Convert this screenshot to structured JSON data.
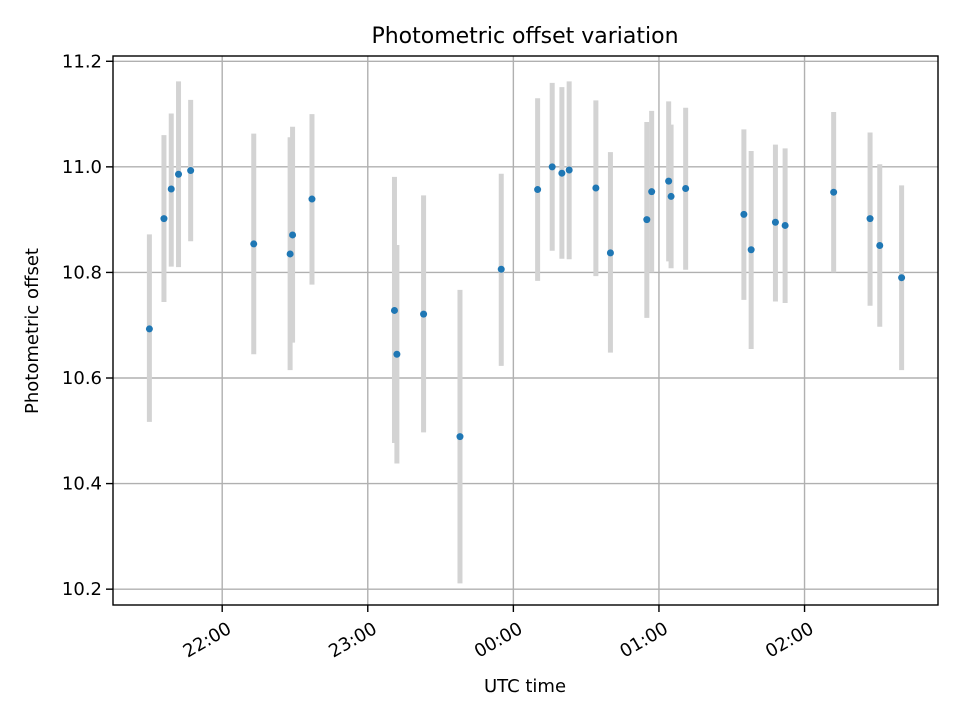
{
  "chart_data": {
    "type": "scatter",
    "title": "Photometric offset variation",
    "xlabel": "UTC time",
    "ylabel": "Photometric offset",
    "x_axis": {
      "kind": "time",
      "range": [
        "21:15",
        "02:55"
      ],
      "ticks": [
        "22:00",
        "23:00",
        "00:00",
        "01:00",
        "02:00"
      ]
    },
    "y_axis": {
      "range": [
        10.17,
        11.21
      ],
      "ticks": [
        10.2,
        10.4,
        10.6,
        10.8,
        11.0,
        11.2
      ],
      "tick_labels": [
        "10.2",
        "10.4",
        "10.6",
        "10.8",
        "11.0",
        "11.2"
      ]
    },
    "grid": true,
    "colors": {
      "points": "#1f77b4",
      "errorbars": "#d3d3d3"
    },
    "series": [
      {
        "points": [
          {
            "t": "21:30",
            "y": 10.693,
            "lo": 10.517,
            "hi": 10.872
          },
          {
            "t": "21:36",
            "y": 10.902,
            "lo": 10.744,
            "hi": 11.06
          },
          {
            "t": "21:39",
            "y": 10.958,
            "lo": 10.811,
            "hi": 11.101
          },
          {
            "t": "21:42",
            "y": 10.986,
            "lo": 10.81,
            "hi": 11.162
          },
          {
            "t": "21:47",
            "y": 10.993,
            "lo": 10.859,
            "hi": 11.127
          },
          {
            "t": "22:13",
            "y": 10.854,
            "lo": 10.645,
            "hi": 11.063
          },
          {
            "t": "22:28",
            "y": 10.835,
            "lo": 10.615,
            "hi": 11.056
          },
          {
            "t": "22:29",
            "y": 10.871,
            "lo": 10.667,
            "hi": 11.076
          },
          {
            "t": "22:37",
            "y": 10.939,
            "lo": 10.777,
            "hi": 11.1
          },
          {
            "t": "23:11",
            "y": 10.728,
            "lo": 10.477,
            "hi": 10.981
          },
          {
            "t": "23:12",
            "y": 10.645,
            "lo": 10.438,
            "hi": 10.852
          },
          {
            "t": "23:23",
            "y": 10.721,
            "lo": 10.497,
            "hi": 10.946
          },
          {
            "t": "23:38",
            "y": 10.489,
            "lo": 10.211,
            "hi": 10.767
          },
          {
            "t": "23:55",
            "y": 10.806,
            "lo": 10.623,
            "hi": 10.987
          },
          {
            "t": "00:10",
            "y": 10.957,
            "lo": 10.784,
            "hi": 11.13
          },
          {
            "t": "00:16",
            "y": 11.0,
            "lo": 10.841,
            "hi": 11.159
          },
          {
            "t": "00:20",
            "y": 10.988,
            "lo": 10.826,
            "hi": 11.151
          },
          {
            "t": "00:23",
            "y": 10.994,
            "lo": 10.825,
            "hi": 11.162
          },
          {
            "t": "00:34",
            "y": 10.96,
            "lo": 10.793,
            "hi": 11.126
          },
          {
            "t": "00:40",
            "y": 10.837,
            "lo": 10.648,
            "hi": 11.028
          },
          {
            "t": "00:55",
            "y": 10.9,
            "lo": 10.714,
            "hi": 11.085
          },
          {
            "t": "00:57",
            "y": 10.953,
            "lo": 10.8,
            "hi": 11.106
          },
          {
            "t": "01:04",
            "y": 10.973,
            "lo": 10.821,
            "hi": 11.124
          },
          {
            "t": "01:05",
            "y": 10.944,
            "lo": 10.808,
            "hi": 11.08
          },
          {
            "t": "01:11",
            "y": 10.959,
            "lo": 10.805,
            "hi": 11.112
          },
          {
            "t": "01:35",
            "y": 10.91,
            "lo": 10.748,
            "hi": 11.071
          },
          {
            "t": "01:38",
            "y": 10.843,
            "lo": 10.655,
            "hi": 11.03
          },
          {
            "t": "01:48",
            "y": 10.895,
            "lo": 10.745,
            "hi": 11.042
          },
          {
            "t": "01:52",
            "y": 10.889,
            "lo": 10.742,
            "hi": 11.035
          },
          {
            "t": "02:12",
            "y": 10.952,
            "lo": 10.8,
            "hi": 11.104
          },
          {
            "t": "02:27",
            "y": 10.902,
            "lo": 10.737,
            "hi": 11.065
          },
          {
            "t": "02:31",
            "y": 10.851,
            "lo": 10.697,
            "hi": 11.005
          },
          {
            "t": "02:40",
            "y": 10.79,
            "lo": 10.615,
            "hi": 10.965
          }
        ]
      }
    ]
  }
}
